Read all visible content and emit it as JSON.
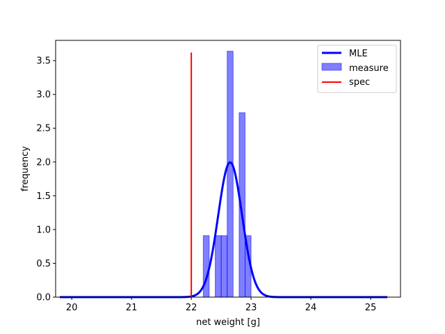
{
  "chart_data": {
    "type": "histogram",
    "xlabel": "net weight [g]",
    "ylabel": "frequency",
    "xlim": [
      19.73,
      25.5
    ],
    "ylim": [
      0,
      3.8
    ],
    "xticks": [
      20,
      21,
      22,
      23,
      24,
      25
    ],
    "yticks": [
      0.0,
      0.5,
      1.0,
      1.5,
      2.0,
      2.5,
      3.0,
      3.5
    ],
    "xtick_labels": [
      "20",
      "21",
      "22",
      "23",
      "24",
      "25"
    ],
    "ytick_labels": [
      "0.0",
      "0.5",
      "1.0",
      "1.5",
      "2.0",
      "2.5",
      "3.0",
      "3.5"
    ],
    "grid": false,
    "legend_position": "top-right",
    "histogram": {
      "name": "measure",
      "color": "#0000ff",
      "bin_edges": [
        22.2,
        22.3,
        22.4,
        22.5,
        22.6,
        22.7,
        22.8,
        22.9,
        23.0
      ],
      "values": [
        0.91,
        0,
        0.91,
        0.91,
        3.64,
        0,
        2.73,
        0.91
      ]
    },
    "mle_curve": {
      "name": "MLE",
      "color": "#0000ff",
      "mean": 22.65,
      "std": 0.2,
      "x_range": [
        19.8,
        25.28
      ]
    },
    "spec_line": {
      "name": "spec",
      "color": "#ff0000",
      "x": 22.0,
      "y_range": [
        0,
        3.62
      ]
    },
    "legend": [
      "MLE",
      "measure",
      "spec"
    ]
  }
}
